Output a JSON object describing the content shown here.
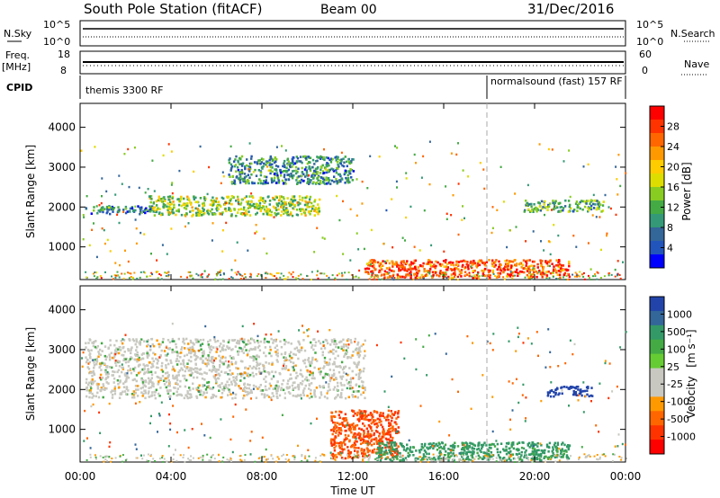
{
  "header": {
    "title": "South Pole Station (fitACF)",
    "beam": "Beam 00",
    "date": "31/Dec/2016"
  },
  "panel_labels": {
    "nsky": "N.Sky",
    "nsearch": "N.Search",
    "freq_line1": "Freq.",
    "freq_line2": "[MHz]",
    "nave": "Nave",
    "cpid": "CPID"
  },
  "cpid_entries": [
    {
      "label": "themis 3300 RF",
      "start_hour": 0
    },
    {
      "label": "normalsound (fast) 157 RF",
      "start_hour": 18
    }
  ],
  "noise_panel": {
    "left_ticks": [
      "10^5",
      "10^0"
    ],
    "right_ticks": [
      "10^5",
      "10^0"
    ]
  },
  "freq_panel": {
    "left_ticks": [
      "18",
      "8"
    ],
    "right_ticks": [
      "60",
      "0"
    ]
  },
  "x_axis": {
    "label": "Time UT",
    "ticks": [
      "00:00",
      "04:00",
      "08:00",
      "12:00",
      "16:00",
      "20:00",
      "00:00"
    ],
    "range_hours": [
      0,
      24
    ]
  },
  "y_axis": {
    "label": "Slant Range [km]",
    "ticks": [
      1000,
      2000,
      3000,
      4000
    ],
    "range_km": [
      180,
      4600
    ]
  },
  "power_scale": {
    "label": "Power [dB]",
    "ticks": [
      "28",
      "24",
      "20",
      "16",
      "12",
      "8",
      "4"
    ],
    "colors": [
      "#ff0000",
      "#ff3300",
      "#ff6600",
      "#ff9900",
      "#ffcc00",
      "#dddd00",
      "#88cc22",
      "#44aa44",
      "#339977",
      "#336699",
      "#2255bb",
      "#0000ff"
    ]
  },
  "velocity_scale": {
    "label": "Velocity",
    "unit": "[m s⁻¹]",
    "ticks": [
      "1000",
      "500",
      "100",
      "25",
      "-25",
      "-100",
      "-500",
      "-1000"
    ],
    "colors": [
      "#2244aa",
      "#336699",
      "#339966",
      "#44aa44",
      "#66cc33",
      "#c8c8c0",
      "#c8c8c0",
      "#ff9900",
      "#ff6600",
      "#ff3300",
      "#ff0000"
    ]
  },
  "chart_data": [
    {
      "type": "heatmap",
      "name": "power",
      "xlabel": "Time UT",
      "ylabel": "Slant Range [km]",
      "colorbar_label": "Power [dB]",
      "xlim_hours": [
        0,
        24
      ],
      "ylim_km": [
        180,
        4600
      ],
      "features": [
        {
          "desc": "band",
          "hours": [
            0.2,
            3.2
          ],
          "km": [
            1850,
            2050
          ],
          "power_db": 6
        },
        {
          "desc": "band",
          "hours": [
            3.0,
            10.5
          ],
          "km": [
            1800,
            2300
          ],
          "power_db": 14
        },
        {
          "desc": "band",
          "hours": [
            6.5,
            12.0
          ],
          "km": [
            2600,
            3300
          ],
          "power_db": 8
        },
        {
          "desc": "near-range strong echoes",
          "hours": [
            12.5,
            21.5
          ],
          "km": [
            250,
            700
          ],
          "power_db": 26
        },
        {
          "desc": "band",
          "hours": [
            19.5,
            23.0
          ],
          "km": [
            1900,
            2200
          ],
          "power_db": 10
        }
      ]
    },
    {
      "type": "heatmap",
      "name": "velocity",
      "xlabel": "Time UT",
      "ylabel": "Slant Range [km]",
      "colorbar_label": "Velocity [m s⁻¹]",
      "xlim_hours": [
        0,
        24
      ],
      "ylim_km": [
        180,
        4600
      ],
      "features": [
        {
          "desc": "near-zero band",
          "hours": [
            0.2,
            12.5
          ],
          "km": [
            1800,
            3300
          ],
          "velocity": 0
        },
        {
          "desc": "negative plume",
          "hours": [
            11.0,
            14.0
          ],
          "km": [
            300,
            1500
          ],
          "velocity": -300
        },
        {
          "desc": "near-range positive",
          "hours": [
            13.0,
            21.5
          ],
          "km": [
            250,
            700
          ],
          "velocity": 80
        },
        {
          "desc": "positive band",
          "hours": [
            20.5,
            22.5
          ],
          "km": [
            1850,
            2100
          ],
          "velocity": 800
        }
      ]
    }
  ]
}
